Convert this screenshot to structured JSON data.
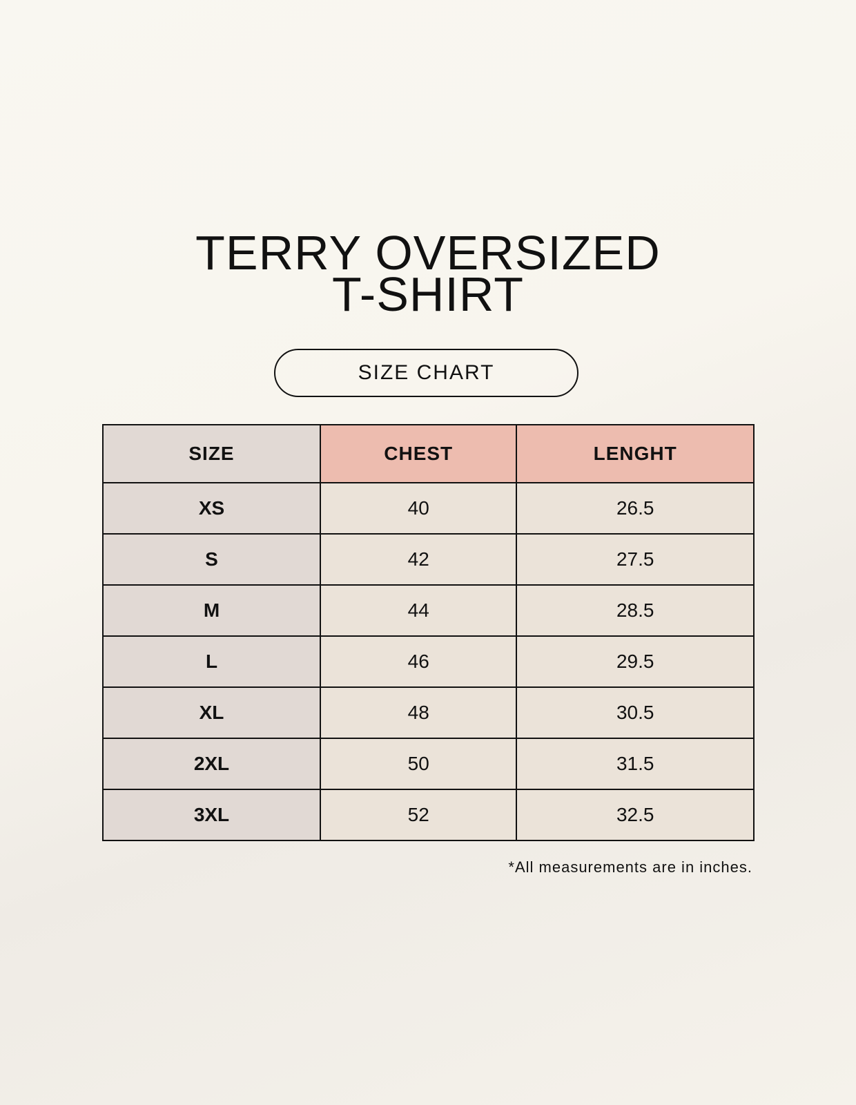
{
  "title_line1": "TERRY OVERSIZED",
  "title_line2": "T-SHIRT",
  "badge": "SIZE CHART",
  "table": {
    "headers": [
      "SIZE",
      "CHEST",
      "LENGHT"
    ],
    "rows": [
      [
        "XS",
        "40",
        "26.5"
      ],
      [
        "S",
        "42",
        "27.5"
      ],
      [
        "M",
        "44",
        "28.5"
      ],
      [
        "L",
        "46",
        "29.5"
      ],
      [
        "XL",
        "48",
        "30.5"
      ],
      [
        "2XL",
        "50",
        "31.5"
      ],
      [
        "3XL",
        "52",
        "32.5"
      ]
    ]
  },
  "footnote": "*All measurements are in inches.",
  "colors": {
    "size_column": "#e1d9d4",
    "header_accent": "#edbcaf",
    "cell": "#ebe3d9"
  }
}
